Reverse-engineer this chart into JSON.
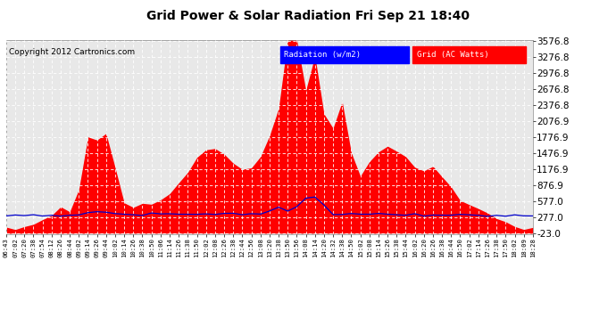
{
  "title": "Grid Power & Solar Radiation Fri Sep 21 18:40",
  "copyright": "Copyright 2012 Cartronics.com",
  "legend_radiation": "Radiation (w/m2)",
  "legend_grid": "Grid (AC Watts)",
  "yticks": [
    -23.0,
    277.0,
    577.0,
    876.9,
    1176.9,
    1476.9,
    1776.9,
    2076.9,
    2376.8,
    2676.8,
    2976.8,
    3276.8,
    3576.8
  ],
  "ymin": -23.0,
  "ymax": 3576.8,
  "bg_color": "#ffffff",
  "plot_bg_color": "#e8e8e8",
  "grid_color": "#ffffff",
  "radiation_color": "#ff0000",
  "grid_line_color": "#0000cc",
  "xtick_labels": [
    "06:43",
    "07:02",
    "07:20",
    "07:38",
    "07:54",
    "08:12",
    "08:26",
    "08:44",
    "09:02",
    "09:14",
    "09:26",
    "09:44",
    "10:02",
    "10:14",
    "10:26",
    "10:38",
    "10:50",
    "11:06",
    "11:14",
    "11:26",
    "11:38",
    "11:50",
    "12:02",
    "12:08",
    "12:26",
    "12:38",
    "12:44",
    "12:56",
    "13:08",
    "13:20",
    "13:38",
    "13:50",
    "13:56",
    "14:08",
    "14:14",
    "14:20",
    "14:32",
    "14:38",
    "14:50",
    "15:02",
    "15:08",
    "15:14",
    "15:26",
    "15:38",
    "15:44",
    "16:02",
    "16:20",
    "16:26",
    "16:38",
    "16:44",
    "16:50",
    "17:02",
    "17:14",
    "17:26",
    "17:38",
    "17:50",
    "18:02",
    "18:09",
    "18:28"
  ]
}
